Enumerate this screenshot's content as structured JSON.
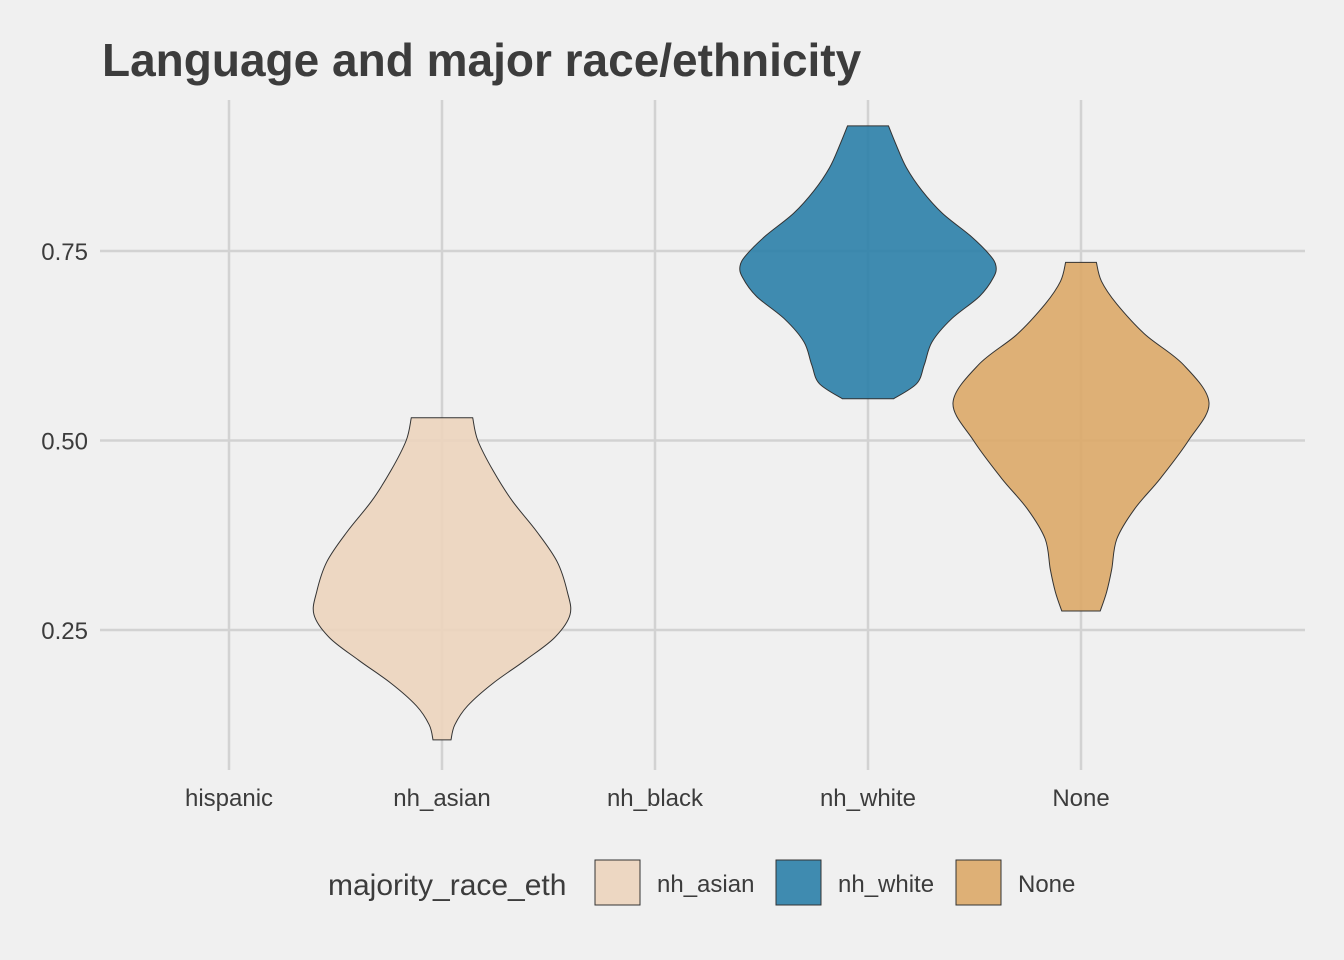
{
  "chart_data": {
    "type": "violin",
    "title": "Language and major race/ethnicity",
    "xlabel": "",
    "ylabel": "",
    "categories": [
      "hispanic",
      "nh_asian",
      "nh_black",
      "nh_white",
      "None"
    ],
    "y_ticks": [
      "0.25",
      "0.50",
      "0.75"
    ],
    "ylim": [
      0.08,
      0.95
    ],
    "grid": true,
    "legend": {
      "title": "majority_race_eth",
      "position": "bottom",
      "entries": [
        "nh_asian",
        "nh_white",
        "None"
      ]
    },
    "series": [
      {
        "name": "nh_asian",
        "category": "nh_asian",
        "color": "#ecd4bc",
        "y_min": 0.105,
        "y_max": 0.53,
        "density_profile": [
          [
            0.105,
            0.07
          ],
          [
            0.125,
            0.1
          ],
          [
            0.15,
            0.2
          ],
          [
            0.18,
            0.4
          ],
          [
            0.21,
            0.65
          ],
          [
            0.24,
            0.88
          ],
          [
            0.27,
            1.0
          ],
          [
            0.3,
            0.98
          ],
          [
            0.34,
            0.9
          ],
          [
            0.38,
            0.74
          ],
          [
            0.42,
            0.55
          ],
          [
            0.46,
            0.4
          ],
          [
            0.5,
            0.28
          ],
          [
            0.53,
            0.24
          ]
        ]
      },
      {
        "name": "nh_white",
        "category": "nh_white",
        "color": "#2b7fa8",
        "y_min": 0.555,
        "y_max": 0.915,
        "density_profile": [
          [
            0.555,
            0.2
          ],
          [
            0.575,
            0.38
          ],
          [
            0.6,
            0.44
          ],
          [
            0.63,
            0.5
          ],
          [
            0.66,
            0.65
          ],
          [
            0.69,
            0.87
          ],
          [
            0.715,
            0.98
          ],
          [
            0.73,
            1.0
          ],
          [
            0.745,
            0.95
          ],
          [
            0.77,
            0.8
          ],
          [
            0.8,
            0.58
          ],
          [
            0.83,
            0.42
          ],
          [
            0.86,
            0.3
          ],
          [
            0.89,
            0.22
          ],
          [
            0.915,
            0.16
          ]
        ]
      },
      {
        "name": "None",
        "category": "None",
        "color": "#dba968",
        "y_min": 0.275,
        "y_max": 0.735,
        "density_profile": [
          [
            0.275,
            0.15
          ],
          [
            0.3,
            0.2
          ],
          [
            0.33,
            0.24
          ],
          [
            0.37,
            0.28
          ],
          [
            0.41,
            0.42
          ],
          [
            0.45,
            0.62
          ],
          [
            0.5,
            0.84
          ],
          [
            0.55,
            1.0
          ],
          [
            0.6,
            0.8
          ],
          [
            0.64,
            0.5
          ],
          [
            0.68,
            0.28
          ],
          [
            0.71,
            0.16
          ],
          [
            0.735,
            0.12
          ]
        ]
      }
    ]
  }
}
